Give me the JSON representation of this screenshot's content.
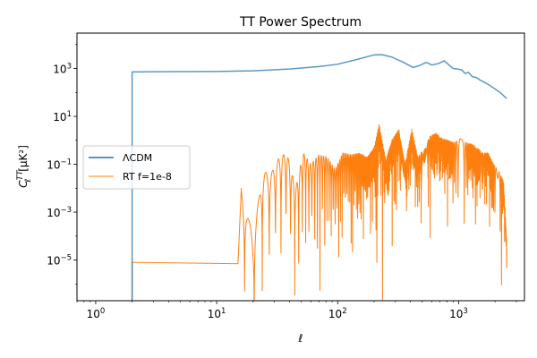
{
  "chart_data": {
    "type": "line",
    "title": "TT Power Spectrum",
    "xlabel": "ℓ",
    "ylabel": {
      "base": "C",
      "sup": "TT",
      "sub": "ℓ",
      "unit": "[μK²]"
    },
    "xscale": "log",
    "yscale": "log",
    "xlim": [
      0.7,
      3500
    ],
    "ylim": [
      2e-07,
      30000
    ],
    "grid": false,
    "legend_position": "center-left",
    "x_ticks": [
      {
        "value": 1,
        "base": "10",
        "exp": "0"
      },
      {
        "value": 10,
        "base": "10",
        "exp": "1"
      },
      {
        "value": 100,
        "base": "10",
        "exp": "2"
      },
      {
        "value": 1000,
        "base": "10",
        "exp": "3"
      }
    ],
    "y_ticks": [
      {
        "value": 1e-05,
        "base": "10",
        "exp": "−5"
      },
      {
        "value": 0.001,
        "base": "10",
        "exp": "−3"
      },
      {
        "value": 0.1,
        "base": "10",
        "exp": "−1"
      },
      {
        "value": 10,
        "base": "10",
        "exp": "1"
      },
      {
        "value": 1000,
        "base": "10",
        "exp": "3"
      }
    ],
    "series": [
      {
        "name": "ΛCDM",
        "color": "#1f77b4",
        "x": [
          2,
          2,
          5,
          10,
          20,
          40,
          70,
          100,
          150,
          200,
          230,
          280,
          350,
          420,
          470,
          540,
          600,
          680,
          760,
          820,
          900,
          980,
          1060,
          1130,
          1200,
          1300,
          1400,
          1500,
          1600,
          1800,
          2000,
          2200,
          2500
        ],
        "y": [
          2e-07,
          720,
          740,
          750,
          800,
          950,
          1200,
          1500,
          2500,
          3700,
          3800,
          3000,
          1800,
          1100,
          1300,
          1800,
          1400,
          1600,
          2100,
          1500,
          1000,
          950,
          880,
          620,
          700,
          450,
          420,
          330,
          280,
          200,
          140,
          100,
          55
        ]
      },
      {
        "name": "RT f=1e-8",
        "color": "#ff7f0e",
        "envelope": {
          "x": [
            2,
            15,
            16,
            20,
            24,
            28,
            33,
            38,
            45,
            52,
            60,
            70,
            82,
            95,
            110,
            130,
            150,
            175,
            200,
            220,
            250,
            280,
            320,
            360,
            410,
            460,
            520,
            580,
            650,
            730,
            820,
            920,
            1030,
            1150,
            1280,
            1420,
            1580,
            1750,
            1950,
            2150,
            2350,
            2500
          ],
          "y": [
            8e-06,
            7e-06,
            0.012,
            8e-05,
            0.05,
            0.04,
            0.2,
            0.3,
            0.01,
            0.3,
            0.1,
            0.25,
            0.2,
            0.06,
            0.3,
            0.25,
            0.3,
            0.2,
            0.5,
            5,
            0.15,
            1,
            3,
            0.1,
            3,
            0.2,
            0.5,
            1.5,
            2,
            1.2,
            1,
            0.8,
            1.2,
            0.8,
            0.7,
            0.5,
            0.3,
            0.3,
            0.1,
            0.05,
            0.02,
            5e-05
          ]
        }
      }
    ]
  }
}
